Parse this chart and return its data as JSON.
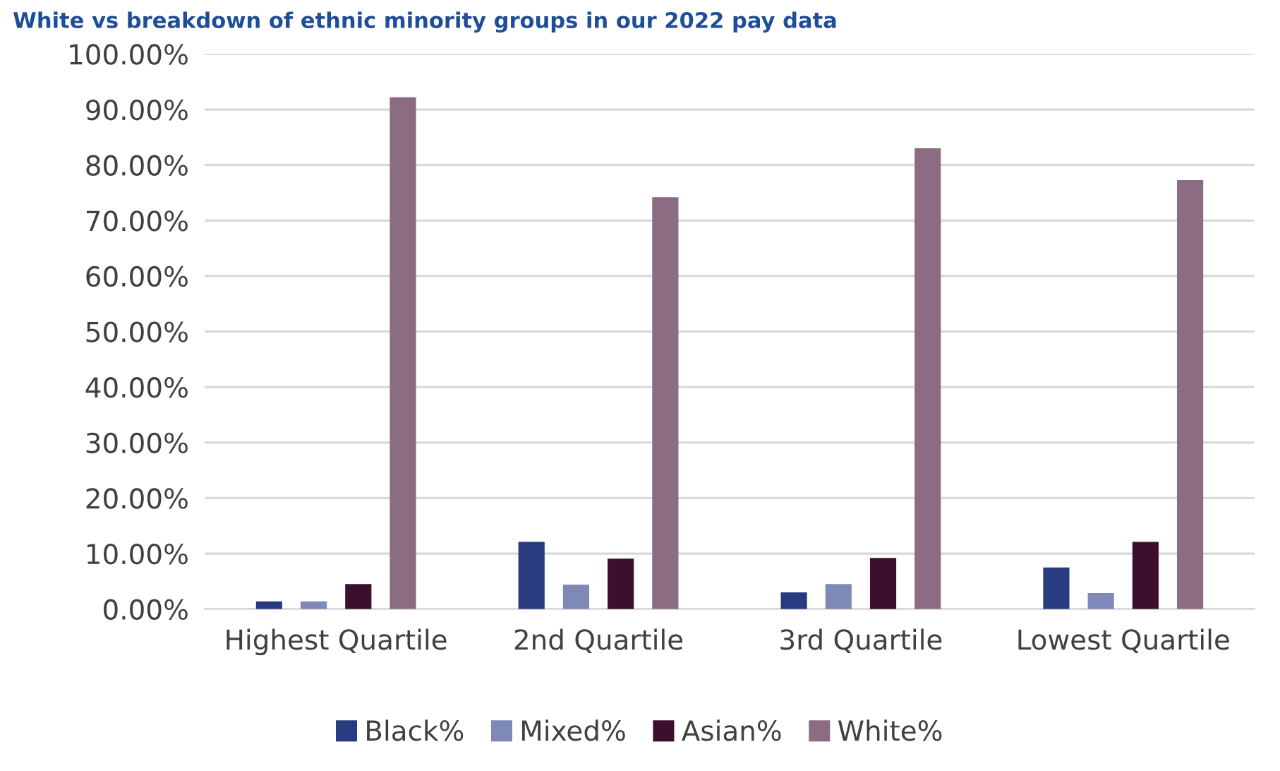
{
  "chart_data": {
    "type": "bar",
    "title": "White vs breakdown of ethnic minority groups in our 2022 pay data",
    "categories": [
      "Highest Quartile",
      "2nd Quartile",
      "3rd Quartile",
      "Lowest Quartile"
    ],
    "series": [
      {
        "name": "Black%",
        "color": "#283b80",
        "values": [
          1.4,
          12.1,
          3.0,
          7.5
        ]
      },
      {
        "name": "Mixed%",
        "color": "#7f89b8",
        "values": [
          1.4,
          4.4,
          4.5,
          2.9
        ]
      },
      {
        "name": "Asian%",
        "color": "#3c0f2f",
        "values": [
          4.5,
          9.1,
          9.2,
          12.1
        ]
      },
      {
        "name": "White%",
        "color": "#8b6c82",
        "values": [
          92.2,
          74.2,
          83.0,
          77.3
        ]
      }
    ],
    "ylim": [
      0,
      100
    ],
    "yticks": [
      {
        "value": 0,
        "label": "0.00%"
      },
      {
        "value": 10,
        "label": "10.00%"
      },
      {
        "value": 20,
        "label": "20.00%"
      },
      {
        "value": 30,
        "label": "30.00%"
      },
      {
        "value": 40,
        "label": "40.00%"
      },
      {
        "value": 50,
        "label": "50.00%"
      },
      {
        "value": 60,
        "label": "60.00%"
      },
      {
        "value": 70,
        "label": "70.00%"
      },
      {
        "value": 80,
        "label": "80.00%"
      },
      {
        "value": 90,
        "label": "90.00%"
      },
      {
        "value": 100,
        "label": "100.00%"
      }
    ],
    "grid": "y",
    "legend": "bottom"
  }
}
